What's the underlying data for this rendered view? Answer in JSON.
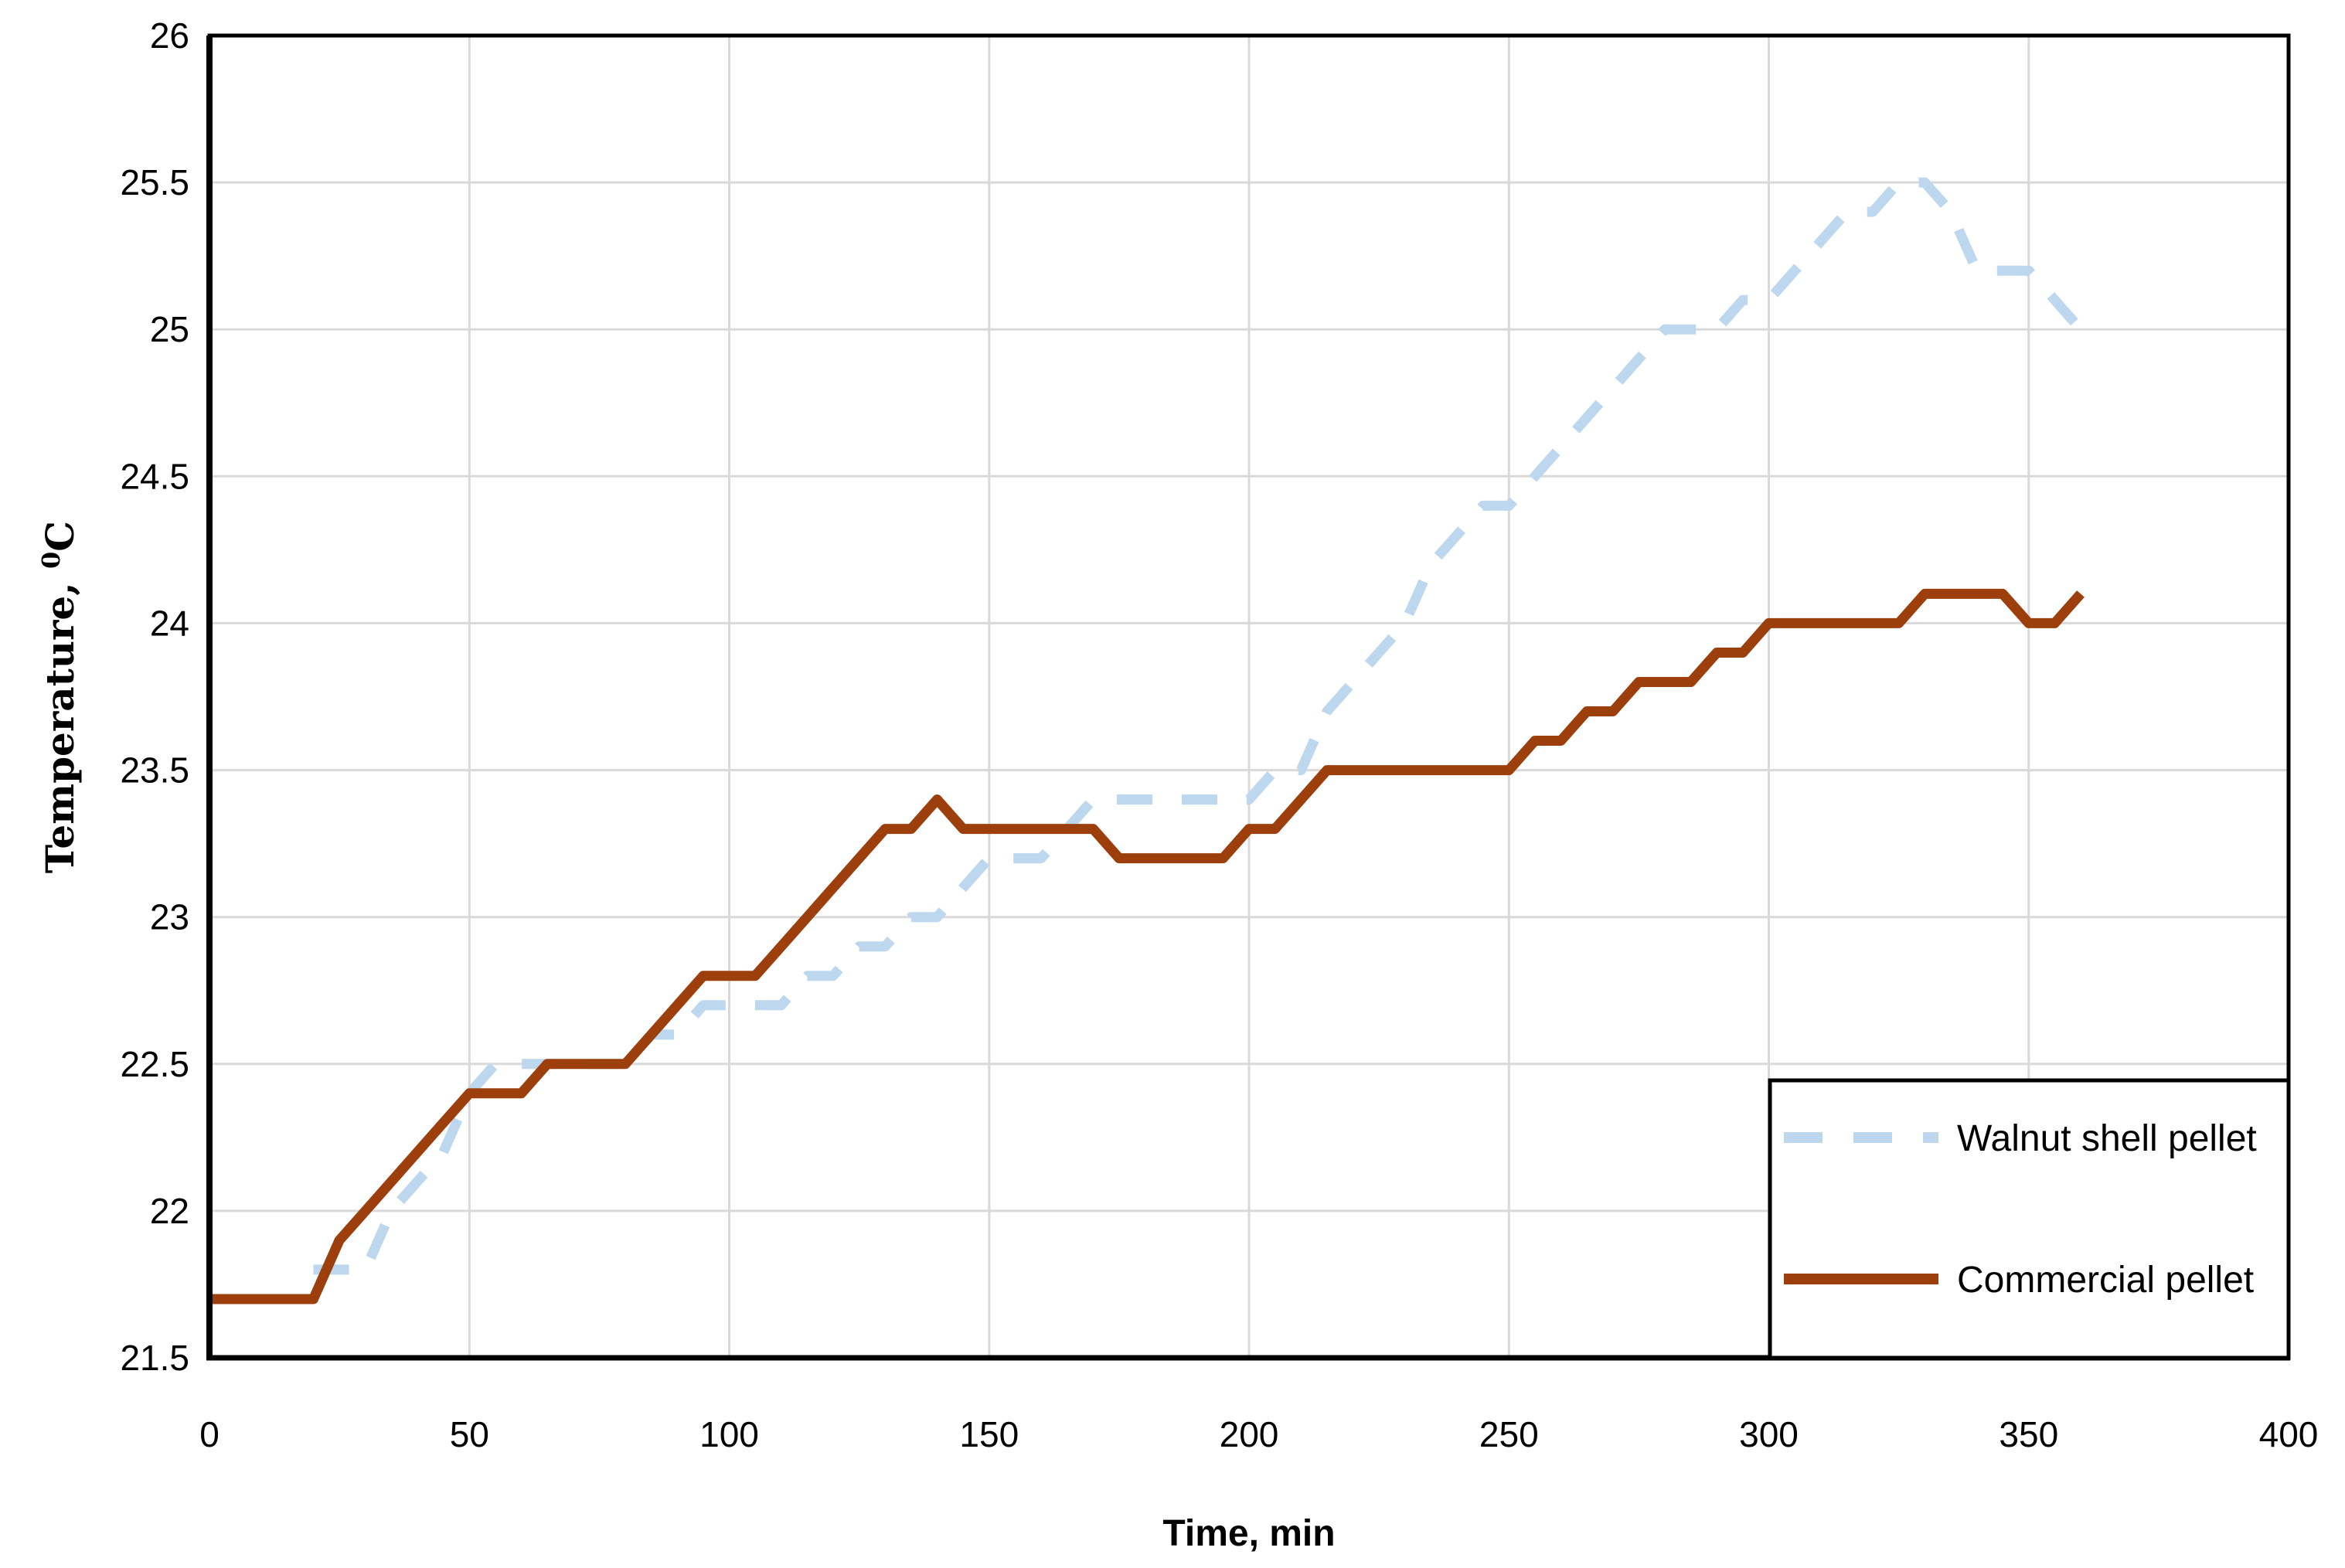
{
  "chart_data": {
    "type": "line",
    "title": "",
    "xlabel": "Time, min",
    "ylabel": "Temperature, ⁰C",
    "xlim": [
      0,
      400
    ],
    "ylim": [
      21.5,
      26
    ],
    "x_ticks": [
      0,
      50,
      100,
      150,
      200,
      250,
      300,
      350,
      400
    ],
    "y_ticks": [
      21.5,
      22,
      22.5,
      23,
      23.5,
      24,
      24.5,
      25,
      25.5,
      26
    ],
    "grid": true,
    "gridline_color": "#d9d9d9",
    "axis_color": "#000000",
    "background_color": "#ffffff",
    "legend_position": "inside-bottom-right",
    "legend_border_color": "#000000",
    "series": [
      {
        "name": "Walnut shell pellet",
        "color": "#BDD7EE",
        "style": "dashed",
        "points": [
          [
            20,
            21.8
          ],
          [
            25,
            21.8
          ],
          [
            30,
            21.8
          ],
          [
            35,
            22.0
          ],
          [
            40,
            22.1
          ],
          [
            45,
            22.2
          ],
          [
            50,
            22.4
          ],
          [
            55,
            22.5
          ],
          [
            60,
            22.5
          ],
          [
            65,
            22.5
          ],
          [
            70,
            22.5
          ],
          [
            75,
            22.5
          ],
          [
            80,
            22.5
          ],
          [
            85,
            22.6
          ],
          [
            90,
            22.6
          ],
          [
            95,
            22.7
          ],
          [
            100,
            22.7
          ],
          [
            105,
            22.7
          ],
          [
            110,
            22.7
          ],
          [
            115,
            22.8
          ],
          [
            120,
            22.8
          ],
          [
            125,
            22.9
          ],
          [
            130,
            22.9
          ],
          [
            135,
            23.0
          ],
          [
            140,
            23.0
          ],
          [
            145,
            23.1
          ],
          [
            150,
            23.2
          ],
          [
            155,
            23.2
          ],
          [
            160,
            23.2
          ],
          [
            165,
            23.3
          ],
          [
            170,
            23.4
          ],
          [
            175,
            23.4
          ],
          [
            180,
            23.4
          ],
          [
            185,
            23.4
          ],
          [
            190,
            23.4
          ],
          [
            195,
            23.4
          ],
          [
            200,
            23.4
          ],
          [
            205,
            23.5
          ],
          [
            210,
            23.5
          ],
          [
            215,
            23.7
          ],
          [
            220,
            23.8
          ],
          [
            225,
            23.9
          ],
          [
            230,
            24.0
          ],
          [
            235,
            24.2
          ],
          [
            240,
            24.3
          ],
          [
            245,
            24.4
          ],
          [
            250,
            24.4
          ],
          [
            255,
            24.5
          ],
          [
            260,
            24.6
          ],
          [
            265,
            24.7
          ],
          [
            270,
            24.8
          ],
          [
            275,
            24.9
          ],
          [
            280,
            25.0
          ],
          [
            285,
            25.0
          ],
          [
            290,
            25.0
          ],
          [
            295,
            25.1
          ],
          [
            300,
            25.1
          ],
          [
            305,
            25.2
          ],
          [
            310,
            25.3
          ],
          [
            315,
            25.4
          ],
          [
            320,
            25.4
          ],
          [
            325,
            25.5
          ],
          [
            330,
            25.5
          ],
          [
            335,
            25.4
          ],
          [
            340,
            25.2
          ],
          [
            345,
            25.2
          ],
          [
            350,
            25.2
          ],
          [
            355,
            25.1
          ],
          [
            360,
            25.0
          ]
        ]
      },
      {
        "name": "Commercial pellet",
        "color": "#9C3F0C",
        "style": "solid",
        "points": [
          [
            0,
            21.7
          ],
          [
            5,
            21.7
          ],
          [
            10,
            21.7
          ],
          [
            15,
            21.7
          ],
          [
            20,
            21.7
          ],
          [
            25,
            21.9
          ],
          [
            30,
            22.0
          ],
          [
            35,
            22.1
          ],
          [
            40,
            22.2
          ],
          [
            45,
            22.3
          ],
          [
            50,
            22.4
          ],
          [
            55,
            22.4
          ],
          [
            60,
            22.4
          ],
          [
            65,
            22.5
          ],
          [
            70,
            22.5
          ],
          [
            75,
            22.5
          ],
          [
            80,
            22.5
          ],
          [
            85,
            22.6
          ],
          [
            90,
            22.7
          ],
          [
            95,
            22.8
          ],
          [
            100,
            22.8
          ],
          [
            105,
            22.8
          ],
          [
            110,
            22.9
          ],
          [
            115,
            23.0
          ],
          [
            120,
            23.1
          ],
          [
            125,
            23.2
          ],
          [
            130,
            23.3
          ],
          [
            135,
            23.3
          ],
          [
            140,
            23.4
          ],
          [
            145,
            23.3
          ],
          [
            150,
            23.3
          ],
          [
            155,
            23.3
          ],
          [
            160,
            23.3
          ],
          [
            165,
            23.3
          ],
          [
            170,
            23.3
          ],
          [
            175,
            23.2
          ],
          [
            180,
            23.2
          ],
          [
            185,
            23.2
          ],
          [
            190,
            23.2
          ],
          [
            195,
            23.2
          ],
          [
            200,
            23.3
          ],
          [
            205,
            23.3
          ],
          [
            210,
            23.4
          ],
          [
            215,
            23.5
          ],
          [
            220,
            23.5
          ],
          [
            225,
            23.5
          ],
          [
            230,
            23.5
          ],
          [
            235,
            23.5
          ],
          [
            240,
            23.5
          ],
          [
            245,
            23.5
          ],
          [
            250,
            23.5
          ],
          [
            255,
            23.6
          ],
          [
            260,
            23.6
          ],
          [
            265,
            23.7
          ],
          [
            270,
            23.7
          ],
          [
            275,
            23.8
          ],
          [
            280,
            23.8
          ],
          [
            285,
            23.8
          ],
          [
            290,
            23.9
          ],
          [
            295,
            23.9
          ],
          [
            300,
            24.0
          ],
          [
            305,
            24.0
          ],
          [
            310,
            24.0
          ],
          [
            315,
            24.0
          ],
          [
            320,
            24.0
          ],
          [
            325,
            24.0
          ],
          [
            330,
            24.1
          ],
          [
            335,
            24.1
          ],
          [
            340,
            24.1
          ],
          [
            345,
            24.1
          ],
          [
            350,
            24.0
          ],
          [
            355,
            24.0
          ],
          [
            360,
            24.1
          ]
        ]
      }
    ]
  }
}
